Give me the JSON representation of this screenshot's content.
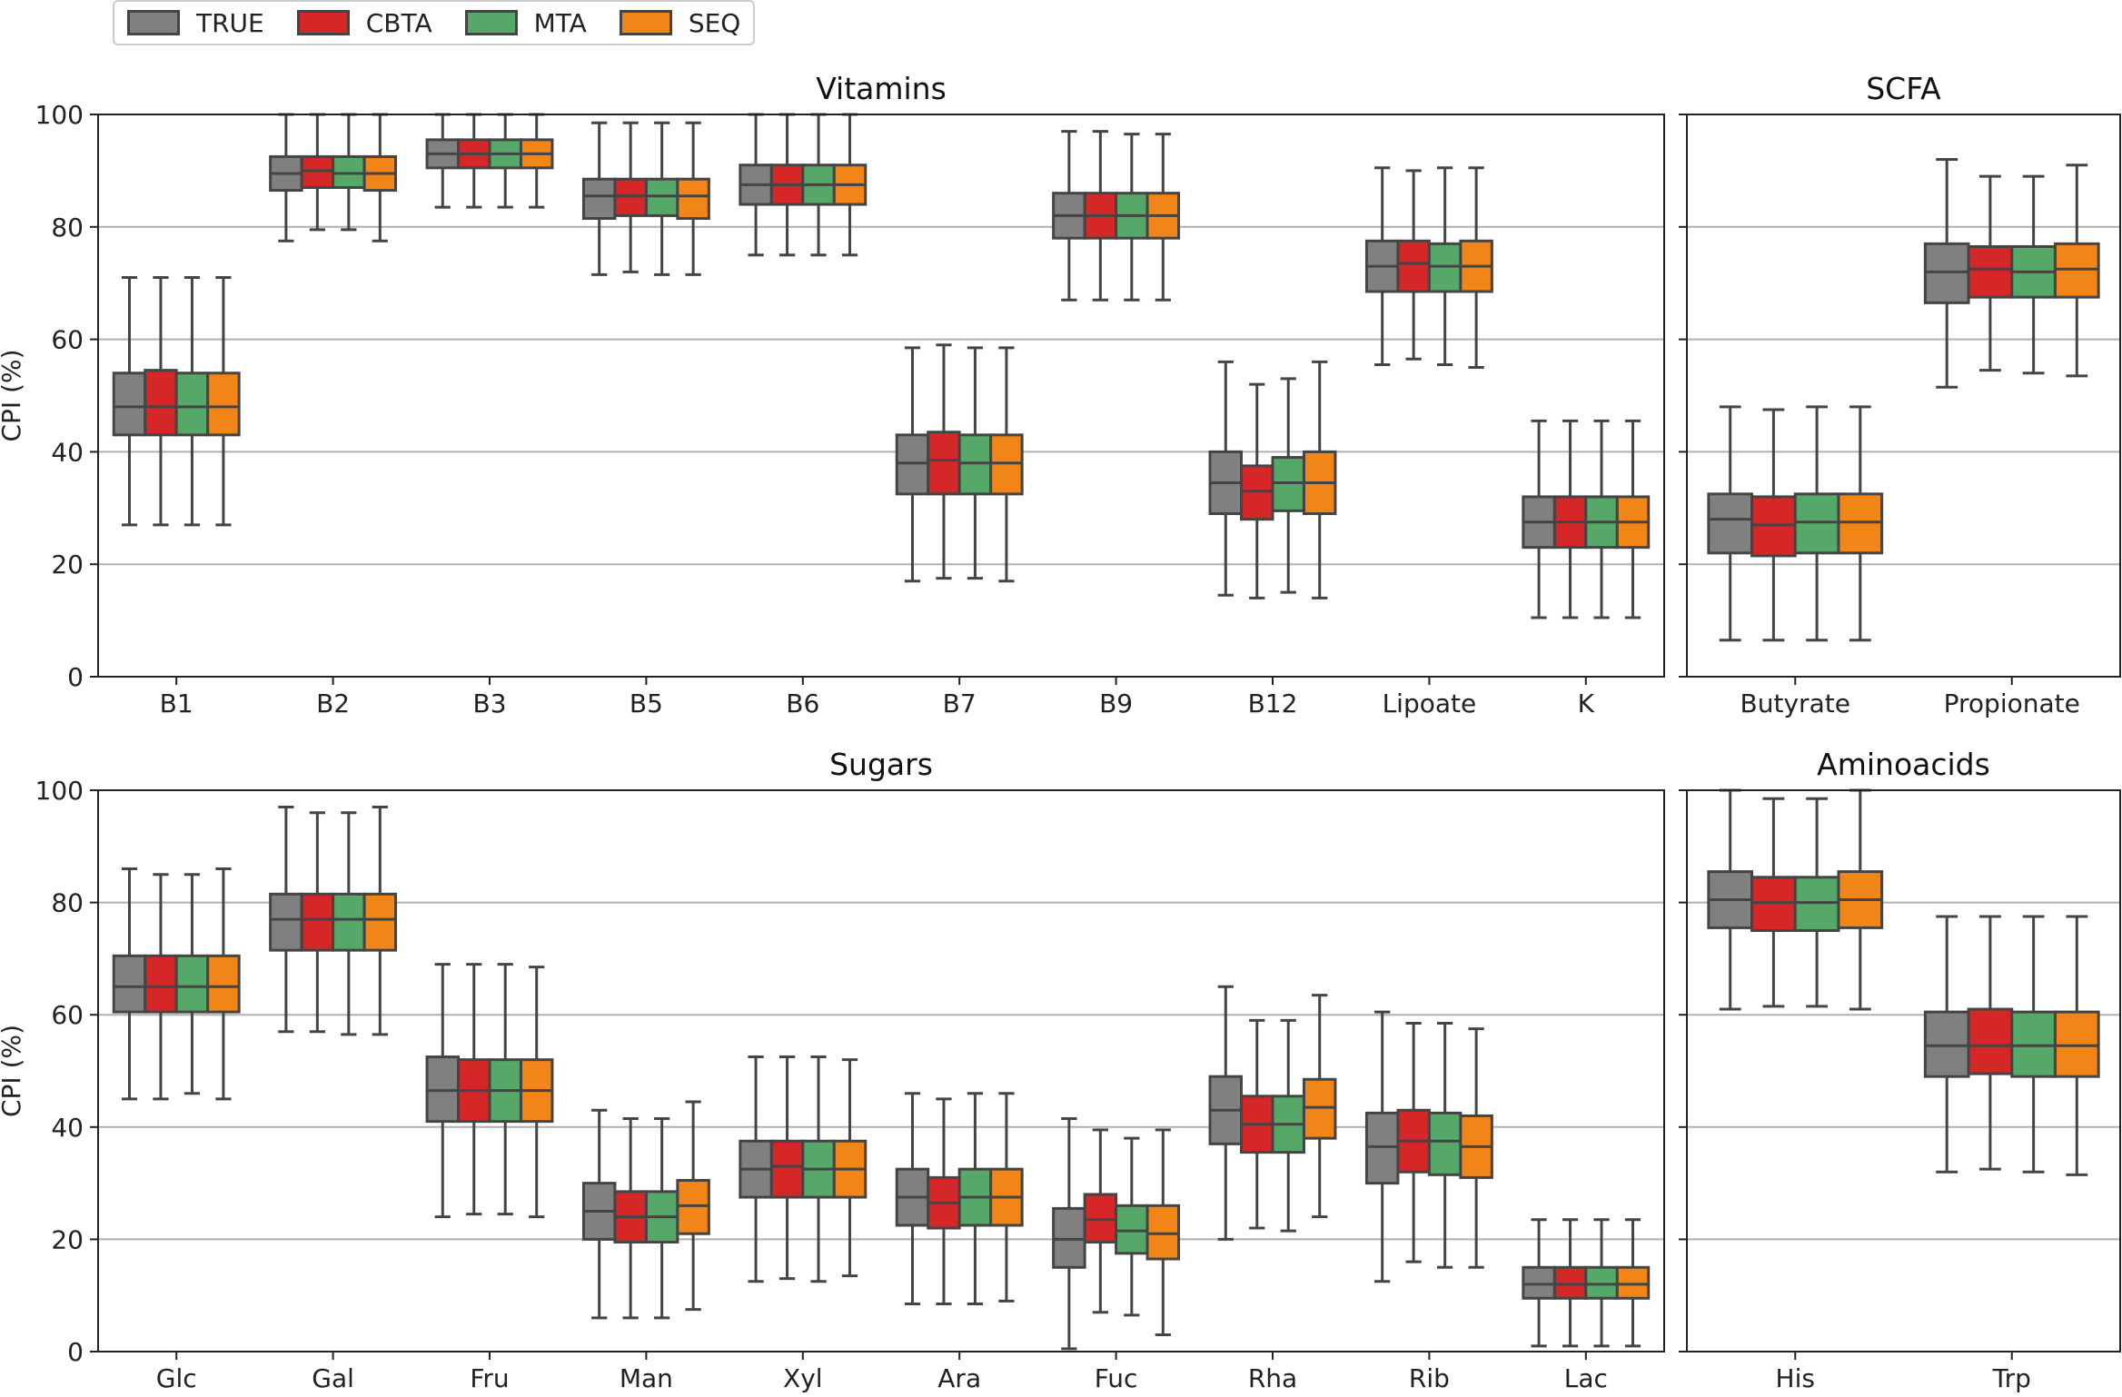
{
  "series_colors": {
    "TRUE": "#808080",
    "CBTA": "#d62728",
    "MTA": "#55a868",
    "SEQ": "#f28518"
  },
  "legend": [
    {
      "label": "TRUE",
      "color": "#808080"
    },
    {
      "label": "CBTA",
      "color": "#d62728"
    },
    {
      "label": "MTA",
      "color": "#55a868"
    },
    {
      "label": "SEQ",
      "color": "#f28518"
    }
  ],
  "chart_data": [
    {
      "type": "boxplot",
      "title": "Vitamins",
      "xlabel": "",
      "ylabel": "CPI (%)",
      "ylim": [
        0,
        100
      ],
      "yticks": [
        0,
        20,
        40,
        60,
        80,
        100
      ],
      "grid": "y",
      "series": [
        "TRUE",
        "CBTA",
        "MTA",
        "SEQ"
      ],
      "categories": [
        "B1",
        "B2",
        "B3",
        "B5",
        "B6",
        "B7",
        "B9",
        "B12",
        "Lipoate",
        "K"
      ],
      "boxes": [
        [
          [
            27,
            43,
            48,
            54,
            71
          ],
          [
            27,
            43,
            48,
            54.5,
            71
          ],
          [
            27,
            43,
            48,
            54,
            71
          ],
          [
            27,
            43,
            48,
            54,
            71
          ]
        ],
        [
          [
            77.5,
            86.5,
            89.5,
            92.5,
            100
          ],
          [
            79.5,
            87,
            90,
            92.5,
            100
          ],
          [
            79.5,
            87,
            89.5,
            92.5,
            100
          ],
          [
            77.5,
            86.5,
            89.5,
            92.5,
            100
          ]
        ],
        [
          [
            83.5,
            90.5,
            93,
            95.5,
            100
          ],
          [
            83.5,
            90.5,
            93,
            95.5,
            100
          ],
          [
            83.5,
            90.5,
            93,
            95.5,
            100
          ],
          [
            83.5,
            90.5,
            93,
            95.5,
            100
          ]
        ],
        [
          [
            71.5,
            81.5,
            85.5,
            88.5,
            98.5
          ],
          [
            72,
            82,
            85.5,
            88.5,
            98.5
          ],
          [
            71.5,
            82,
            85.5,
            88.5,
            98.5
          ],
          [
            71.5,
            81.5,
            85.5,
            88.5,
            98.5
          ]
        ],
        [
          [
            75,
            84,
            87.5,
            91,
            100
          ],
          [
            75,
            84,
            87.5,
            91,
            100
          ],
          [
            75,
            84,
            87.5,
            91,
            100
          ],
          [
            75,
            84,
            87.5,
            91,
            100
          ]
        ],
        [
          [
            17,
            32.5,
            38,
            43,
            58.5
          ],
          [
            17.5,
            32.5,
            38.5,
            43.5,
            59
          ],
          [
            17.5,
            32.5,
            38,
            43,
            58.5
          ],
          [
            17,
            32.5,
            38,
            43,
            58.5
          ]
        ],
        [
          [
            67,
            78,
            82,
            86,
            97
          ],
          [
            67,
            78,
            82,
            86,
            97
          ],
          [
            67,
            78,
            82,
            86,
            96.5
          ],
          [
            67,
            78,
            82,
            86,
            96.5
          ]
        ],
        [
          [
            14.5,
            29,
            34.5,
            40,
            56
          ],
          [
            14,
            28,
            33,
            37.5,
            52
          ],
          [
            15,
            29.5,
            34.5,
            39,
            53
          ],
          [
            14,
            29,
            34.5,
            40,
            56
          ]
        ],
        [
          [
            55.5,
            68.5,
            73,
            77.5,
            90.5
          ],
          [
            56.5,
            68.5,
            73.5,
            77.5,
            90
          ],
          [
            55.5,
            68.5,
            73,
            77,
            90.5
          ],
          [
            55,
            68.5,
            73,
            77.5,
            90.5
          ]
        ],
        [
          [
            10.5,
            23,
            27.5,
            32,
            45.5
          ],
          [
            10.5,
            23,
            27.5,
            32,
            45.5
          ],
          [
            10.5,
            23,
            27.5,
            32,
            45.5
          ],
          [
            10.5,
            23,
            27.5,
            32,
            45.5
          ]
        ]
      ]
    },
    {
      "type": "boxplot",
      "title": "SCFA",
      "xlabel": "",
      "ylabel": "",
      "ylim": [
        0,
        100
      ],
      "yticks": [
        0,
        20,
        40,
        60,
        80,
        100
      ],
      "grid": "y",
      "series": [
        "TRUE",
        "CBTA",
        "MTA",
        "SEQ"
      ],
      "categories": [
        "Butyrate",
        "Propionate"
      ],
      "boxes": [
        [
          [
            6.5,
            22,
            28,
            32.5,
            48
          ],
          [
            6.5,
            21.5,
            27,
            32,
            47.5
          ],
          [
            6.5,
            22,
            27.5,
            32.5,
            48
          ],
          [
            6.5,
            22,
            27.5,
            32.5,
            48
          ]
        ],
        [
          [
            51.5,
            66.5,
            72,
            77,
            92
          ],
          [
            54.5,
            67.5,
            72.5,
            76.5,
            89
          ],
          [
            54,
            67.5,
            72,
            76.5,
            89
          ],
          [
            53.5,
            67.5,
            72.5,
            77,
            91
          ]
        ]
      ]
    },
    {
      "type": "boxplot",
      "title": "Sugars",
      "xlabel": "",
      "ylabel": "CPI (%)",
      "ylim": [
        0,
        100
      ],
      "yticks": [
        0,
        20,
        40,
        60,
        80,
        100
      ],
      "grid": "y",
      "series": [
        "TRUE",
        "CBTA",
        "MTA",
        "SEQ"
      ],
      "categories": [
        "Glc",
        "Gal",
        "Fru",
        "Man",
        "Xyl",
        "Ara",
        "Fuc",
        "Rha",
        "Rib",
        "Lac"
      ],
      "boxes": [
        [
          [
            45,
            60.5,
            65,
            70.5,
            86
          ],
          [
            45,
            60.5,
            65,
            70.5,
            85
          ],
          [
            46,
            60.5,
            65,
            70.5,
            85
          ],
          [
            45,
            60.5,
            65,
            70.5,
            86
          ]
        ],
        [
          [
            57,
            71.5,
            77,
            81.5,
            97
          ],
          [
            57,
            71.5,
            77,
            81.5,
            96
          ],
          [
            56.5,
            71.5,
            77,
            81.5,
            96
          ],
          [
            56.5,
            71.5,
            77,
            81.5,
            97
          ]
        ],
        [
          [
            24,
            41,
            46.5,
            52.5,
            69
          ],
          [
            24.5,
            41,
            46.5,
            52,
            69
          ],
          [
            24.5,
            41,
            46.5,
            52,
            69
          ],
          [
            24,
            41,
            46.5,
            52,
            68.5
          ]
        ],
        [
          [
            6,
            20,
            25,
            30,
            43
          ],
          [
            6,
            19.5,
            24,
            28.5,
            41.5
          ],
          [
            6,
            19.5,
            24,
            28.5,
            41.5
          ],
          [
            7.5,
            21,
            26,
            30.5,
            44.5
          ]
        ],
        [
          [
            12.5,
            27.5,
            32.5,
            37.5,
            52.5
          ],
          [
            13,
            27.5,
            33,
            37.5,
            52.5
          ],
          [
            12.5,
            27.5,
            32.5,
            37.5,
            52.5
          ],
          [
            13.5,
            27.5,
            32.5,
            37.5,
            52
          ]
        ],
        [
          [
            8.5,
            22.5,
            27.5,
            32.5,
            46
          ],
          [
            8.5,
            22,
            26.5,
            31,
            45
          ],
          [
            8.5,
            22.5,
            27.5,
            32.5,
            46
          ],
          [
            9,
            22.5,
            27.5,
            32.5,
            46
          ]
        ],
        [
          [
            0.5,
            15,
            20,
            25.5,
            41.5
          ],
          [
            7,
            19.5,
            23.5,
            28,
            39.5
          ],
          [
            6.5,
            17.5,
            21.5,
            26,
            38
          ],
          [
            3,
            16.5,
            21,
            26,
            39.5
          ]
        ],
        [
          [
            20,
            37,
            43,
            49,
            65
          ],
          [
            22,
            35.5,
            40.5,
            45.5,
            59
          ],
          [
            21.5,
            35.5,
            40.5,
            45.5,
            59
          ],
          [
            24,
            38,
            43.5,
            48.5,
            63.5
          ]
        ],
        [
          [
            12.5,
            30,
            36.5,
            42.5,
            60.5
          ],
          [
            16,
            32,
            37.5,
            43,
            58.5
          ],
          [
            15,
            31.5,
            37.5,
            42.5,
            58.5
          ],
          [
            15,
            31,
            36.5,
            42,
            57.5
          ]
        ],
        [
          [
            1,
            9.5,
            12,
            15,
            23.5
          ],
          [
            1,
            9.5,
            12,
            15,
            23.5
          ],
          [
            1,
            9.5,
            12,
            15,
            23.5
          ],
          [
            1,
            9.5,
            12,
            15,
            23.5
          ]
        ]
      ]
    },
    {
      "type": "boxplot",
      "title": "Aminoacids",
      "xlabel": "",
      "ylabel": "",
      "ylim": [
        0,
        100
      ],
      "yticks": [
        0,
        20,
        40,
        60,
        80,
        100
      ],
      "grid": "y",
      "series": [
        "TRUE",
        "CBTA",
        "MTA",
        "SEQ"
      ],
      "categories": [
        "His",
        "Trp"
      ],
      "boxes": [
        [
          [
            61,
            75.5,
            80.5,
            85.5,
            100
          ],
          [
            61.5,
            75,
            80,
            84.5,
            98.5
          ],
          [
            61.5,
            75,
            80,
            84.5,
            98.5
          ],
          [
            61,
            75.5,
            80.5,
            85.5,
            100
          ]
        ],
        [
          [
            32,
            49,
            54.5,
            60.5,
            77.5
          ],
          [
            32.5,
            49.5,
            54.5,
            61,
            77.5
          ],
          [
            32,
            49,
            54.5,
            60.5,
            77.5
          ],
          [
            31.5,
            49,
            54.5,
            60.5,
            77.5
          ]
        ]
      ]
    }
  ]
}
